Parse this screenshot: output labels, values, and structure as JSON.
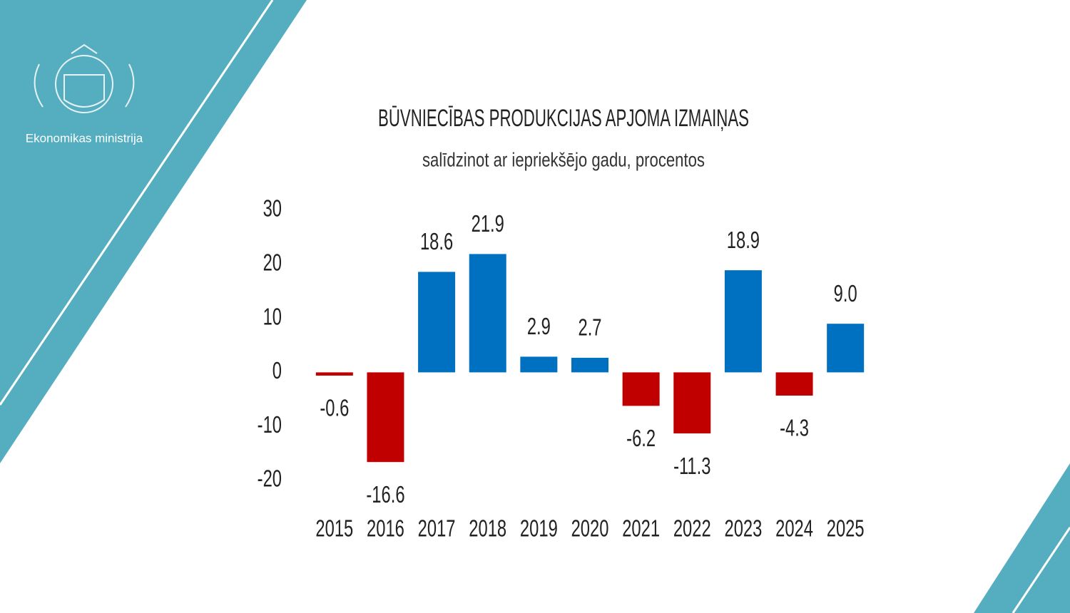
{
  "organization": "Ekonomikas ministrija",
  "chart_data": {
    "type": "bar",
    "title": "BŪVNIECĪBAS PRODUKCIJAS APJOMA IZMAIŅAS",
    "subtitle": "salīdzinot ar iepriekšējo gadu, procentos",
    "categories": [
      "2015",
      "2016",
      "2017",
      "2018",
      "2019",
      "2020",
      "2021",
      "2022",
      "2023",
      "2024",
      "2025"
    ],
    "values": [
      -0.6,
      -16.6,
      18.6,
      21.9,
      2.9,
      2.7,
      -6.2,
      -11.3,
      18.9,
      -4.3,
      9.0
    ],
    "value_labels": [
      "-0.6",
      "-16.6",
      "18.6",
      "21.9",
      "2.9",
      "2.7",
      "-6.2",
      "-11.3",
      "18.9",
      "-4.3",
      "9.0"
    ],
    "positive_color": "#0070c0",
    "negative_color": "#c00000",
    "ylim": [
      -20,
      30
    ],
    "yticks": [
      -20,
      -10,
      0,
      10,
      20,
      30
    ],
    "grid": false
  }
}
